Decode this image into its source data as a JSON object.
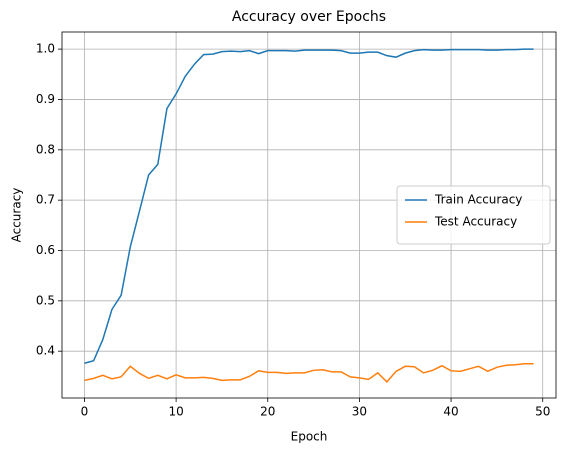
{
  "chart_data": {
    "type": "line",
    "title": "Accuracy over Epochs",
    "x_label": "Epoch",
    "y_label": "Accuracy",
    "x": [
      0,
      1,
      2,
      3,
      4,
      5,
      6,
      7,
      8,
      9,
      10,
      11,
      12,
      13,
      14,
      15,
      16,
      17,
      18,
      19,
      20,
      21,
      22,
      23,
      24,
      25,
      26,
      27,
      28,
      29,
      30,
      31,
      32,
      33,
      34,
      35,
      36,
      37,
      38,
      39,
      40,
      41,
      42,
      43,
      44,
      45,
      46,
      47,
      48,
      49
    ],
    "series": [
      {
        "name": "Train Accuracy",
        "color": "#1f77b4",
        "values": [
          0.376,
          0.381,
          0.423,
          0.483,
          0.511,
          0.607,
          0.678,
          0.75,
          0.771,
          0.882,
          0.911,
          0.946,
          0.97,
          0.989,
          0.99,
          0.995,
          0.996,
          0.995,
          0.997,
          0.991,
          0.997,
          0.997,
          0.997,
          0.996,
          0.998,
          0.998,
          0.998,
          0.998,
          0.997,
          0.992,
          0.992,
          0.994,
          0.994,
          0.987,
          0.984,
          0.992,
          0.997,
          0.999,
          0.998,
          0.998,
          0.999,
          0.999,
          0.999,
          0.999,
          0.998,
          0.998,
          0.999,
          0.999,
          1.0,
          1.0
        ]
      },
      {
        "name": "Test Accuracy",
        "color": "#ff7f0e",
        "values": [
          0.342,
          0.346,
          0.352,
          0.345,
          0.349,
          0.37,
          0.356,
          0.346,
          0.352,
          0.345,
          0.353,
          0.347,
          0.347,
          0.348,
          0.346,
          0.342,
          0.343,
          0.343,
          0.35,
          0.361,
          0.358,
          0.358,
          0.356,
          0.357,
          0.357,
          0.362,
          0.363,
          0.359,
          0.359,
          0.349,
          0.347,
          0.344,
          0.357,
          0.339,
          0.36,
          0.37,
          0.369,
          0.357,
          0.362,
          0.371,
          0.361,
          0.36,
          0.365,
          0.37,
          0.36,
          0.368,
          0.372,
          0.373,
          0.375,
          0.375
        ]
      }
    ],
    "xlim": [
      -2.45,
      51.45
    ],
    "xticks": [
      0,
      10,
      20,
      30,
      40,
      50
    ],
    "ylim": [
      0.307,
      1.034
    ],
    "yticks": [
      0.4,
      0.5,
      0.6,
      0.7,
      0.8,
      0.9,
      {
        "value": 1,
        "label": "1.0"
      }
    ],
    "grid": true,
    "legend": "center right"
  }
}
